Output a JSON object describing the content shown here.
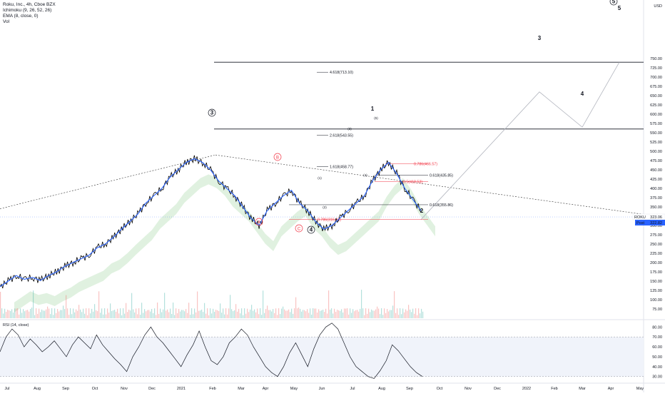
{
  "header": {
    "symbol_line": "Roku, Inc., 4h, Cboe BZX",
    "indicators": [
      "Ichimoku (9, 26, 52, 26)",
      "EMA (8, close, 0)",
      "Vol"
    ],
    "currency": "USD"
  },
  "rsi_panel": {
    "label": "RSI (14, close)"
  },
  "price_tag": {
    "symbol": "ROKU",
    "last": "323.06",
    "post_label": "Post",
    "post": "322.82"
  },
  "colors": {
    "price_line": "#000000",
    "ema": "#2962ff",
    "cloud_green": "#a5d6a7",
    "cloud_red": "#f8bbd0",
    "fib_red": "#f23645",
    "tag_blue": "#2962ff"
  },
  "chart_data": [
    {
      "type": "line",
      "name": "price",
      "y_axis": {
        "ticks": [
          75,
          100,
          125,
          150,
          175,
          200,
          225,
          250,
          275,
          300,
          325,
          350,
          375,
          400,
          425,
          450,
          475,
          500,
          525,
          550,
          575,
          600,
          625,
          650,
          675,
          700,
          725,
          750
        ],
        "range": [
          65,
          760
        ]
      },
      "x_axis": {
        "ticks": [
          "Jul",
          "Aug",
          "Sep",
          "Oct",
          "Nov",
          "Dec",
          "2021",
          "Feb",
          "Mar",
          "Apr",
          "May",
          "Jun",
          "Jul",
          "Aug",
          "Sep",
          "Oct",
          "Nov",
          "Dec",
          "2022",
          "Feb",
          "Mar",
          "Apr",
          "May"
        ]
      },
      "x": [
        0,
        8,
        16,
        24,
        32,
        40,
        48,
        56,
        62,
        70,
        76,
        82,
        88,
        94,
        100,
        104,
        108,
        112,
        116,
        120,
        124,
        128,
        130,
        132,
        134,
        136,
        140,
        144,
        148,
        152,
        156,
        160,
        164,
        168,
        172,
        176,
        180,
        184,
        188,
        192,
        196,
        200,
        204,
        208,
        212,
        216,
        220,
        224,
        228,
        232,
        236,
        240,
        242
      ],
      "close": [
        135,
        150,
        165,
        155,
        160,
        152,
        165,
        175,
        190,
        200,
        210,
        220,
        240,
        250,
        268,
        290,
        310,
        330,
        360,
        380,
        400,
        430,
        450,
        470,
        480,
        470,
        450,
        420,
        400,
        380,
        350,
        320,
        300,
        340,
        360,
        380,
        395,
        360,
        340,
        310,
        290,
        300,
        320,
        340,
        360,
        380,
        420,
        450,
        470,
        440,
        400,
        370,
        340
      ],
      "ema_label": "EMA (8, close, 0)",
      "volume_note": "Vol",
      "fib_levels": [
        {
          "label": "4.618(713.10)",
          "value": 713.1
        },
        {
          "label": "2.618(543.55)",
          "value": 543.55
        },
        {
          "label": "1.618(458.77)",
          "value": 458.77
        },
        {
          "label": "0.786(466.57)",
          "value": 466.57,
          "red": true
        },
        {
          "label": "0.618(435.85)",
          "value": 435.85
        },
        {
          "label": "0.5(418.53)",
          "value": 418.53,
          "red": true
        },
        {
          "label": "0.618(355.86)",
          "value": 355.86
        },
        {
          "label": "0.786(316.15)",
          "value": 316.15,
          "red": true
        }
      ],
      "horizontal_lines": [
        740,
        560
      ],
      "wave_labels": [
        {
          "text": "3",
          "circled": true
        },
        {
          "text": "A",
          "circled": true,
          "red": true
        },
        {
          "text": "B",
          "circled": true,
          "red": true
        },
        {
          "text": "C",
          "circled": true,
          "red": true
        },
        {
          "text": "4",
          "circled": true
        },
        {
          "text": "1"
        },
        {
          "text": "2"
        },
        {
          "text": "3"
        },
        {
          "text": "4"
        },
        {
          "text": "5"
        },
        {
          "text": "5",
          "circled": true
        },
        {
          "text": "(1)"
        },
        {
          "text": "(2)"
        },
        {
          "text": "(3)"
        },
        {
          "text": "(4)"
        },
        {
          "text": "(5)"
        }
      ],
      "projection": [
        [
          "Sep",
          323
        ],
        [
          "Feb",
          660
        ],
        [
          "Mar",
          565
        ],
        [
          "Apr",
          740
        ]
      ]
    },
    {
      "type": "line",
      "name": "RSI (14, close)",
      "y_axis": {
        "ticks": [
          30,
          40,
          50,
          60,
          70,
          80
        ],
        "range": [
          24,
          86
        ],
        "bands": [
          30,
          70
        ]
      },
      "values": [
        55,
        70,
        78,
        72,
        60,
        68,
        62,
        55,
        60,
        66,
        58,
        50,
        62,
        70,
        64,
        58,
        72,
        62,
        55,
        48,
        42,
        35,
        50,
        60,
        72,
        80,
        70,
        64,
        56,
        48,
        40,
        52,
        62,
        76,
        60,
        46,
        42,
        50,
        64,
        70,
        78,
        72,
        60,
        50,
        40,
        34,
        30,
        40,
        54,
        64,
        52,
        40,
        58,
        72,
        80,
        84,
        78,
        64,
        50,
        40,
        35,
        30,
        28,
        36,
        46,
        62,
        56,
        48,
        40,
        34,
        30
      ]
    }
  ]
}
